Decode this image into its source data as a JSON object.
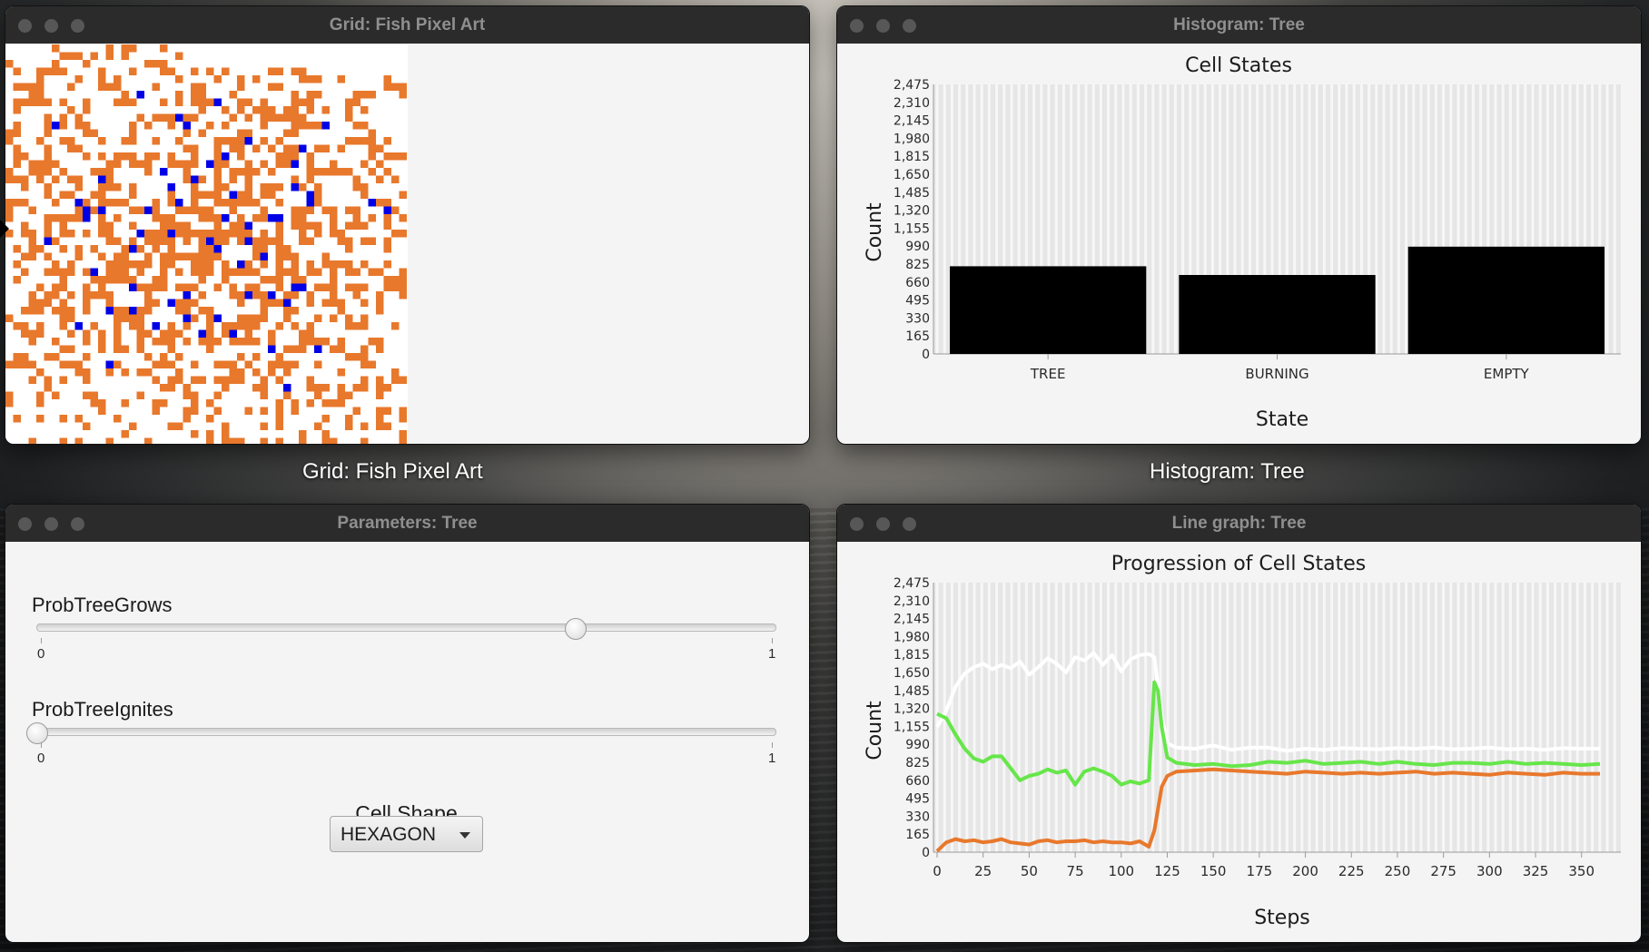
{
  "windows": {
    "grid": {
      "title": "Grid: Fish Pixel Art",
      "desktop_label": "Grid: Fish Pixel Art"
    },
    "histogram": {
      "title": "Histogram: Tree",
      "desktop_label": "Histogram: Tree"
    },
    "parameters": {
      "title": "Parameters: Tree",
      "sliders": [
        {
          "label": "ProbTreeGrows",
          "min_label": "0",
          "max_label": "1",
          "value": 0.73
        },
        {
          "label": "ProbTreeIgnites",
          "min_label": "0",
          "max_label": "1",
          "value": 0.0
        }
      ],
      "cell_shape_label": "Cell Shape",
      "cell_shape_value": "HEXAGON"
    },
    "linegraph": {
      "title": "Line graph: Tree"
    }
  },
  "grid_colors": {
    "tree": "#e8782c",
    "burning": "#0000e6",
    "empty": "#ffffff"
  },
  "chart_data": [
    {
      "type": "bar",
      "title": "Cell States",
      "xlabel": "State",
      "ylabel": "Count",
      "categories": [
        "TREE",
        "BURNING",
        "EMPTY"
      ],
      "values": [
        805,
        725,
        985
      ],
      "ylim": [
        0,
        2475
      ],
      "yticks": [
        "0",
        "165",
        "330",
        "495",
        "660",
        "825",
        "990",
        "1,155",
        "1,320",
        "1,485",
        "1,650",
        "1,815",
        "1,980",
        "2,145",
        "2,310",
        "2,475"
      ],
      "bar_color": "#000000",
      "grid": true
    },
    {
      "type": "line",
      "title": "Progression of Cell States",
      "xlabel": "Steps",
      "ylabel": "Count",
      "xlim": [
        0,
        360
      ],
      "ylim": [
        0,
        2475
      ],
      "xticks": [
        "0",
        "25",
        "50",
        "75",
        "100",
        "125",
        "150",
        "175",
        "200",
        "225",
        "250",
        "275",
        "300",
        "325",
        "350"
      ],
      "yticks": [
        "0",
        "165",
        "330",
        "495",
        "660",
        "825",
        "990",
        "1,155",
        "1,320",
        "1,485",
        "1,650",
        "1,815",
        "1,980",
        "2,145",
        "2,310",
        "2,475"
      ],
      "grid": true,
      "series": [
        {
          "color": "#ffffff",
          "x": [
            0,
            5,
            10,
            15,
            20,
            25,
            30,
            35,
            40,
            45,
            50,
            55,
            60,
            65,
            70,
            75,
            80,
            85,
            90,
            95,
            100,
            105,
            110,
            115,
            118,
            122,
            125,
            130,
            140,
            150,
            160,
            170,
            180,
            190,
            200,
            210,
            220,
            230,
            240,
            250,
            260,
            270,
            280,
            290,
            300,
            310,
            320,
            330,
            340,
            350,
            360
          ],
          "y": [
            1150,
            1300,
            1520,
            1640,
            1700,
            1730,
            1680,
            1720,
            1690,
            1750,
            1630,
            1700,
            1780,
            1730,
            1650,
            1790,
            1760,
            1830,
            1720,
            1810,
            1660,
            1770,
            1810,
            1820,
            1790,
            1250,
            1000,
            960,
            950,
            980,
            940,
            960,
            960,
            930,
            950,
            940,
            955,
            950,
            945,
            955,
            950,
            960,
            945,
            950,
            960,
            945,
            950,
            940,
            955,
            950,
            950
          ]
        },
        {
          "color": "#66e64a",
          "x": [
            0,
            5,
            10,
            15,
            20,
            25,
            30,
            35,
            40,
            45,
            50,
            55,
            60,
            65,
            70,
            75,
            80,
            85,
            90,
            95,
            100,
            105,
            110,
            115,
            118,
            120,
            122,
            125,
            130,
            140,
            150,
            160,
            170,
            180,
            190,
            200,
            210,
            220,
            230,
            240,
            250,
            260,
            270,
            280,
            290,
            300,
            310,
            320,
            330,
            340,
            350,
            360
          ],
          "y": [
            1270,
            1230,
            1080,
            950,
            860,
            830,
            880,
            880,
            770,
            660,
            700,
            720,
            760,
            730,
            750,
            620,
            740,
            770,
            740,
            700,
            620,
            650,
            630,
            660,
            1560,
            1480,
            1150,
            870,
            820,
            800,
            810,
            790,
            800,
            830,
            820,
            840,
            810,
            820,
            830,
            810,
            830,
            810,
            800,
            820,
            820,
            810,
            830,
            810,
            820,
            810,
            800,
            810
          ]
        },
        {
          "color": "#e8782c",
          "x": [
            0,
            5,
            10,
            15,
            20,
            25,
            30,
            35,
            40,
            45,
            50,
            55,
            60,
            65,
            70,
            75,
            80,
            85,
            90,
            95,
            100,
            105,
            110,
            115,
            118,
            122,
            125,
            130,
            140,
            150,
            160,
            170,
            180,
            190,
            200,
            210,
            220,
            230,
            240,
            250,
            260,
            270,
            280,
            290,
            300,
            310,
            320,
            330,
            340,
            350,
            360
          ],
          "y": [
            10,
            90,
            120,
            100,
            110,
            90,
            100,
            120,
            90,
            80,
            70,
            100,
            110,
            90,
            100,
            100,
            110,
            90,
            100,
            90,
            90,
            80,
            100,
            50,
            200,
            600,
            700,
            740,
            750,
            760,
            750,
            740,
            730,
            720,
            740,
            730,
            720,
            730,
            720,
            730,
            740,
            720,
            730,
            720,
            710,
            730,
            720,
            710,
            730,
            720,
            720
          ]
        }
      ]
    }
  ]
}
